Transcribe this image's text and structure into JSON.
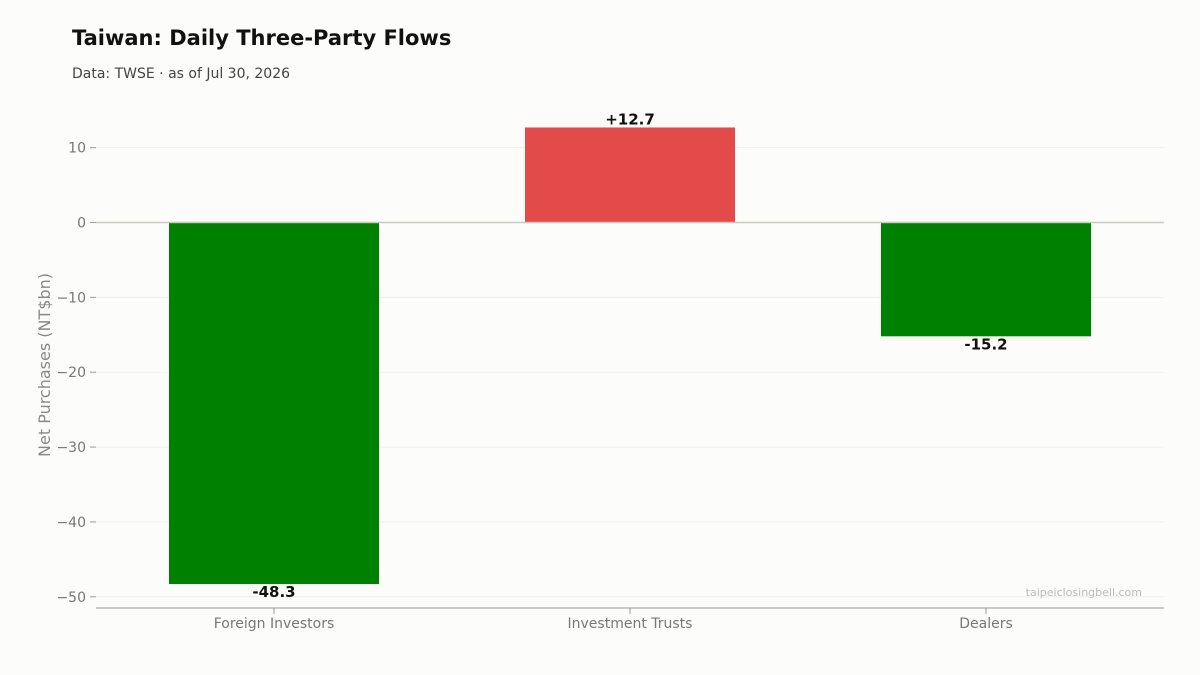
{
  "header": {
    "title": "Taiwan: Daily Three-Party Flows",
    "subtitle": "Data: TWSE · as of Jul 30, 2026"
  },
  "watermark": "taipeiclosingbell.com",
  "colors": {
    "positive": "#e34a4a",
    "negative": "#008000",
    "zero_line": "#c8c8c0",
    "grid": "#f0f0ea",
    "axis": "#999999"
  },
  "chart_data": {
    "type": "bar",
    "categories": [
      "Foreign Investors",
      "Investment Trusts",
      "Dealers"
    ],
    "values": [
      -48.3,
      12.7,
      -15.2
    ],
    "data_labels": [
      "-48.3",
      "+12.7",
      "-15.2"
    ],
    "ylabel": "Net Purchases (NT$bn)",
    "yticks": [
      10,
      0,
      -10,
      -20,
      -30,
      -40,
      -50
    ],
    "ytick_labels": [
      "10",
      "0",
      "−10",
      "−20",
      "−30",
      "−40",
      "−50"
    ],
    "ylim": [
      -51.5,
      14.5
    ],
    "grid": true,
    "legend": "none"
  }
}
